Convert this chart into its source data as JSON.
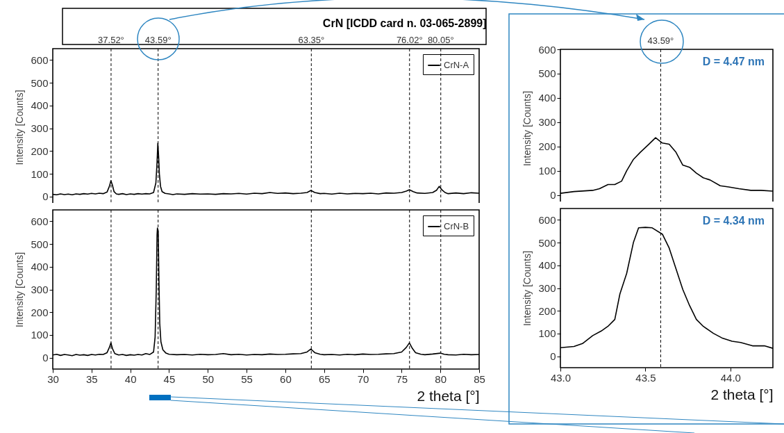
{
  "chart_data": [
    {
      "type": "line",
      "title": "CrN [ICDD card n. 03-065-2899]",
      "ylabel": "Intensity [Counts]",
      "xlim": [
        30,
        85
      ],
      "xticks": [
        30,
        35,
        40,
        45,
        50,
        55,
        60,
        65,
        70,
        75,
        80,
        85
      ],
      "ylim": [
        -40,
        650
      ],
      "yticks": [
        0,
        100,
        200,
        300,
        400,
        500,
        600
      ],
      "tick_labels": "y",
      "legend": "top right",
      "line_style": "solid",
      "series": [
        {
          "name": "CrN-A",
          "color": "#000000",
          "x": [
            30,
            30.5,
            31,
            31.5,
            32,
            32.5,
            33,
            33.5,
            34,
            34.5,
            35,
            35.5,
            36,
            36.5,
            37,
            37.3,
            37.5,
            37.7,
            37.9,
            38.2,
            38.5,
            39,
            39.5,
            40,
            40.5,
            41,
            41.5,
            42,
            42.5,
            43,
            43.3,
            43.45,
            43.55,
            43.65,
            43.75,
            43.9,
            44.1,
            44.5,
            45,
            45.5,
            46,
            47,
            48,
            49,
            50,
            51,
            52,
            53,
            54,
            55,
            56,
            57,
            58,
            59,
            60,
            61,
            62,
            62.8,
            63.3,
            63.8,
            64.5,
            65,
            66,
            67,
            68,
            69,
            70,
            71,
            72,
            73,
            74,
            75,
            75.6,
            76,
            76.5,
            77,
            78,
            79,
            79.5,
            79.85,
            80.2,
            80.6,
            81,
            82,
            83,
            84,
            85
          ],
          "values": [
            10,
            8,
            12,
            9,
            11,
            8,
            12,
            10,
            13,
            11,
            14,
            12,
            15,
            13,
            20,
            45,
            70,
            50,
            22,
            12,
            10,
            13,
            9,
            12,
            10,
            13,
            11,
            13,
            12,
            18,
            60,
            150,
            235,
            180,
            100,
            45,
            22,
            14,
            12,
            9,
            12,
            10,
            13,
            11,
            12,
            10,
            13,
            12,
            14,
            11,
            15,
            13,
            18,
            14,
            16,
            13,
            15,
            18,
            27,
            18,
            13,
            14,
            11,
            15,
            12,
            14,
            13,
            15,
            12,
            16,
            15,
            18,
            24,
            30,
            22,
            16,
            14,
            18,
            28,
            45,
            30,
            18,
            13,
            16,
            13,
            17,
            15
          ]
        }
      ],
      "ref_lines": [
        {
          "axis": "x",
          "value": 37.52,
          "label": "37.52°",
          "line_style": "dashed"
        },
        {
          "axis": "x",
          "value": 43.59,
          "label": "43.59°",
          "line_style": "dashed"
        },
        {
          "axis": "x",
          "value": 63.35,
          "label": "63.35°",
          "line_style": "dashed"
        },
        {
          "axis": "x",
          "value": 76.02,
          "label": "76.02°",
          "line_style": "dashed"
        },
        {
          "axis": "x",
          "value": 80.05,
          "label": "80.05°",
          "line_style": "dashed"
        }
      ]
    },
    {
      "type": "line",
      "xlabel": "2 theta [°]",
      "ylabel": "Intensity [Counts]",
      "xlim": [
        30,
        85
      ],
      "xticks": [
        30,
        35,
        40,
        45,
        50,
        55,
        60,
        65,
        70,
        75,
        80,
        85
      ],
      "ylim": [
        -50,
        650
      ],
      "yticks": [
        0,
        100,
        200,
        300,
        400,
        500,
        600
      ],
      "legend": "top right",
      "line_style": "solid",
      "series": [
        {
          "name": "CrN-B",
          "color": "#000000",
          "x": [
            30,
            30.5,
            31,
            31.5,
            32,
            32.5,
            33,
            33.5,
            34,
            34.5,
            35,
            35.5,
            36,
            36.5,
            37,
            37.3,
            37.5,
            37.7,
            38,
            38.5,
            39,
            39.5,
            40,
            40.5,
            41,
            41.5,
            42,
            42.5,
            43,
            43.2,
            43.35,
            43.45,
            43.5,
            43.6,
            43.7,
            43.8,
            43.95,
            44.2,
            44.6,
            45,
            46,
            47,
            48,
            49,
            50,
            51,
            52,
            53,
            54,
            55,
            56,
            57,
            58,
            59,
            60,
            61,
            62,
            62.8,
            63.3,
            63.8,
            64.5,
            65,
            66,
            67,
            68,
            69,
            70,
            71,
            72,
            73,
            74,
            75,
            75.6,
            76,
            76.4,
            76.8,
            77.5,
            78,
            79,
            80,
            80.5,
            81,
            82,
            83,
            84,
            85
          ],
          "values": [
            12,
            15,
            10,
            14,
            12,
            9,
            14,
            11,
            13,
            10,
            14,
            12,
            15,
            14,
            22,
            45,
            65,
            40,
            18,
            12,
            14,
            10,
            13,
            11,
            14,
            12,
            18,
            14,
            25,
            90,
            300,
            540,
            570,
            555,
            330,
            150,
            70,
            35,
            20,
            15,
            13,
            14,
            12,
            15,
            13,
            14,
            18,
            13,
            15,
            12,
            14,
            13,
            16,
            14,
            15,
            17,
            18,
            25,
            38,
            22,
            15,
            13,
            14,
            12,
            15,
            13,
            16,
            14,
            15,
            17,
            18,
            25,
            45,
            65,
            40,
            22,
            15,
            13,
            16,
            20,
            15,
            13,
            12,
            15,
            13,
            14
          ]
        }
      ],
      "ref_lines": [
        {
          "axis": "x",
          "value": 37.52,
          "line_style": "dashed"
        },
        {
          "axis": "x",
          "value": 43.59,
          "line_style": "dashed"
        },
        {
          "axis": "x",
          "value": 63.35,
          "line_style": "dashed"
        },
        {
          "axis": "x",
          "value": 76.02,
          "line_style": "dashed"
        },
        {
          "axis": "x",
          "value": 80.05,
          "line_style": "dashed"
        }
      ]
    },
    {
      "type": "line",
      "ylabel": "Intensity [Counts]",
      "xlim": [
        43,
        44.25
      ],
      "xticks": [
        43,
        43.5,
        44
      ],
      "ylim": [
        -50,
        600
      ],
      "yticks": [
        0,
        100,
        200,
        300,
        400,
        500,
        600
      ],
      "tick_labels": "y",
      "line_style": "solid",
      "annotations": [
        "D = 4.47 nm"
      ],
      "series": [
        {
          "color": "#000000",
          "x": [
            43.0,
            43.08,
            43.19,
            43.23,
            43.28,
            43.32,
            43.36,
            43.39,
            43.43,
            43.47,
            43.52,
            43.56,
            43.6,
            43.64,
            43.68,
            43.72,
            43.76,
            43.8,
            43.84,
            43.88,
            43.94,
            43.99,
            44.05,
            44.12,
            44.18,
            44.25
          ],
          "values": [
            7,
            14,
            19,
            26,
            43,
            43,
            57,
            100,
            147,
            176,
            209,
            236,
            214,
            209,
            176,
            123,
            114,
            90,
            71,
            62,
            38,
            33,
            26,
            19,
            19,
            16
          ]
        }
      ],
      "ref_lines": [
        {
          "axis": "x",
          "value": 43.59,
          "label": "43.59°",
          "line_style": "dashed"
        }
      ]
    },
    {
      "type": "line",
      "xlabel": "2 theta [°]",
      "ylabel": "Intensity [Counts]",
      "xlim": [
        43,
        44.25
      ],
      "xticks": [
        {
          "value": 43,
          "label": "43.0"
        },
        {
          "value": 43.5,
          "label": "43.5"
        },
        {
          "value": 44,
          "label": "44.0"
        }
      ],
      "ylim": [
        -50,
        650
      ],
      "yticks": [
        0,
        100,
        200,
        300,
        400,
        500,
        600
      ],
      "line_style": "solid",
      "annotations": [
        "D = 4.34 nm"
      ],
      "series": [
        {
          "color": "#000000",
          "x": [
            43.0,
            43.08,
            43.13,
            43.19,
            43.24,
            43.28,
            43.32,
            43.35,
            43.39,
            43.43,
            43.46,
            43.5,
            43.54,
            43.6,
            43.64,
            43.68,
            43.72,
            43.76,
            43.8,
            43.84,
            43.9,
            43.95,
            44.01,
            44.06,
            44.13,
            44.2,
            44.25
          ],
          "values": [
            38,
            43,
            56,
            91,
            111,
            132,
            162,
            274,
            365,
            502,
            565,
            567,
            565,
            537,
            476,
            385,
            294,
            223,
            162,
            132,
            101,
            81,
            66,
            61,
            46,
            46,
            35
          ]
        }
      ],
      "ref_lines": [
        {
          "axis": "x",
          "value": 43.59,
          "line_style": "dashed"
        }
      ]
    }
  ]
}
